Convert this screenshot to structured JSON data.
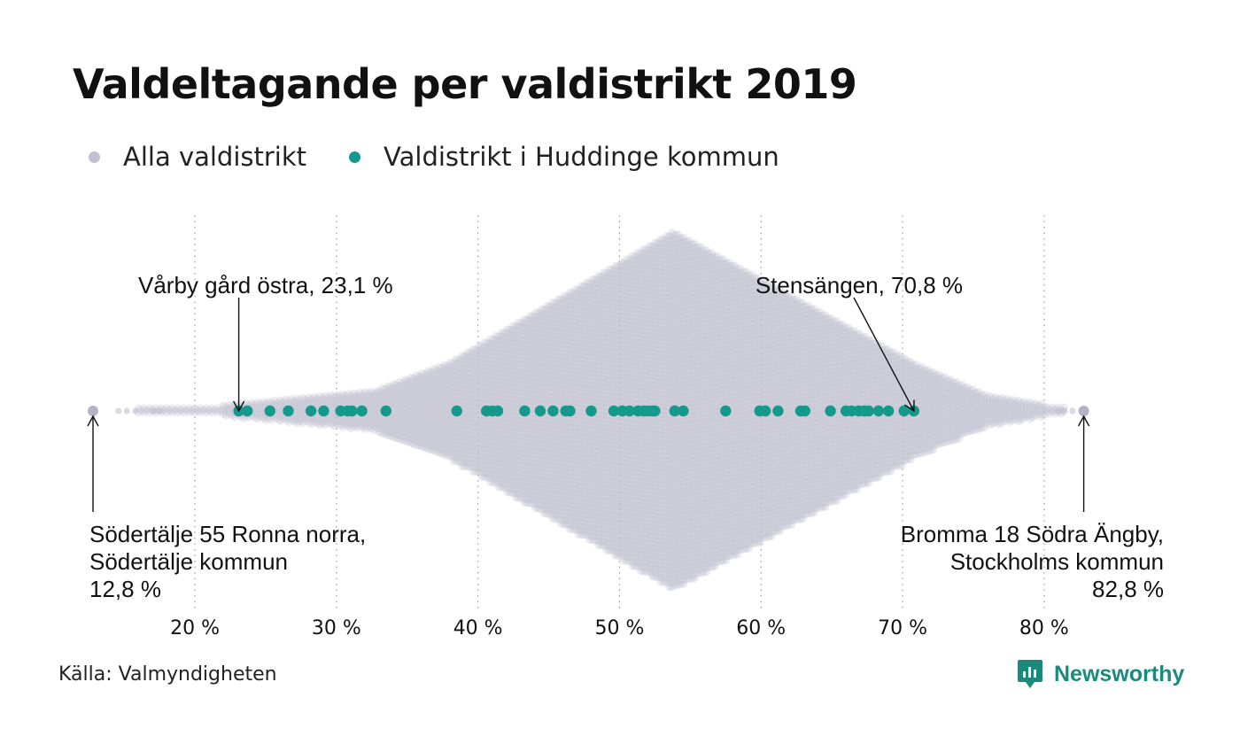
{
  "title": "Valdeltagande per valdistrikt 2019",
  "legend": [
    {
      "label": "Alla valdistrikt",
      "color": "#c2c1cf"
    },
    {
      "label": "Valdistrikt i Huddinge kommun",
      "color": "#14998a"
    }
  ],
  "source": "Källa: Valmyndigheten",
  "brand": {
    "name": "Newsworthy",
    "icon": "newsworthy-logo-icon",
    "color": "#1a8a7c"
  },
  "chart_data": {
    "type": "scatter",
    "subtype": "beeswarm",
    "xlabel": "",
    "ylabel": "",
    "xlim": [
      12,
      84
    ],
    "x_ticks": [
      20,
      30,
      40,
      50,
      60,
      70,
      80
    ],
    "x_tick_labels": [
      "20 %",
      "30 %",
      "40 %",
      "50 %",
      "60 %",
      "70 %",
      "80 %"
    ],
    "grid": "vertical dotted",
    "series": [
      {
        "name": "Alla valdistrikt",
        "color": "#c2c1cf",
        "distribution": {
          "min": 12.8,
          "max": 82.8,
          "mode": 53.8,
          "note_values": "dense swarm of several thousand districts, most between 35 % and 72 %"
        },
        "outliers": [
          12.8,
          82.8
        ]
      },
      {
        "name": "Valdistrikt i Huddinge kommun",
        "color": "#14998a",
        "values": [
          23.1,
          23.7,
          25.3,
          26.6,
          28.2,
          29.1,
          30.3,
          30.8,
          31.1,
          31.8,
          33.5,
          38.5,
          40.6,
          41.0,
          41.4,
          43.3,
          44.4,
          45.3,
          46.2,
          46.5,
          48.0,
          49.6,
          50.2,
          50.7,
          51.3,
          51.7,
          52.0,
          52.3,
          52.5,
          53.9,
          54.5,
          57.5,
          59.9,
          60.3,
          61.2,
          62.8,
          63.1,
          64.9,
          66.0,
          66.4,
          66.9,
          67.3,
          67.6,
          68.3,
          69.0,
          70.1,
          70.8
        ]
      }
    ],
    "annotations": [
      {
        "lines": [
          "Vårby gård östra, 23,1 %"
        ],
        "x": 23.1
      },
      {
        "lines": [
          "Stensängen, 70,8 %"
        ],
        "x": 70.8
      },
      {
        "lines": [
          "Södertälje 55 Ronna norra,",
          "Södertälje kommun",
          "12,8 %"
        ],
        "x": 12.8
      },
      {
        "lines": [
          "Bromma 18 Södra Ängby,",
          "Stockholms kommun",
          "82,8 %"
        ],
        "x": 82.8
      }
    ]
  }
}
